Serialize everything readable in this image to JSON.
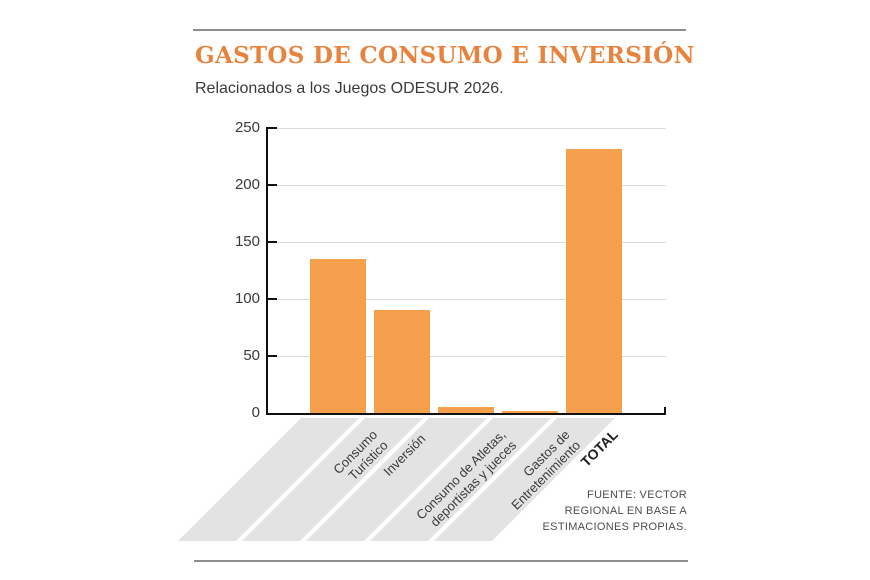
{
  "page": {
    "title": "GASTOS DE CONSUMO E INVERSIÓN",
    "subtitle": "Relacionados a los Juegos ODESUR 2026.",
    "source_lines": [
      "FUENTE: VECTOR",
      "REGIONAL EN BASE A",
      "ESTIMACIONES PROPIAS."
    ]
  },
  "chart_data": {
    "type": "bar",
    "title": "GASTOS DE CONSUMO E INVERSIÓN",
    "subtitle": "Relacionados a los Juegos ODESUR 2026.",
    "categories": [
      "Consumo\nTurístico",
      "Inversión",
      "Consumo de Atletas,\ndeportistas y jueces",
      "Gastos de\nEntretenimiento",
      "TOTAL"
    ],
    "values": [
      135,
      90,
      5,
      2,
      232
    ],
    "emphasis_category": "TOTAL",
    "xlabel": "",
    "ylabel": "",
    "ylim": [
      0,
      250
    ],
    "yticks": [
      0,
      50,
      100,
      150,
      200,
      250
    ],
    "grid": true,
    "legend": false,
    "source": "FUENTE: VECTOR REGIONAL EN BASE A ESTIMACIONES PROPIAS."
  },
  "colors": {
    "background": "#FFFFFF",
    "bar": "#F6A04D",
    "title": "#E8833E",
    "band": "#E3E3E3",
    "grid": "#DBDBDB",
    "axis": "#111111",
    "text": "#3A3A3A",
    "source": "#4D4D4D",
    "rule": "#8E8E8E"
  }
}
